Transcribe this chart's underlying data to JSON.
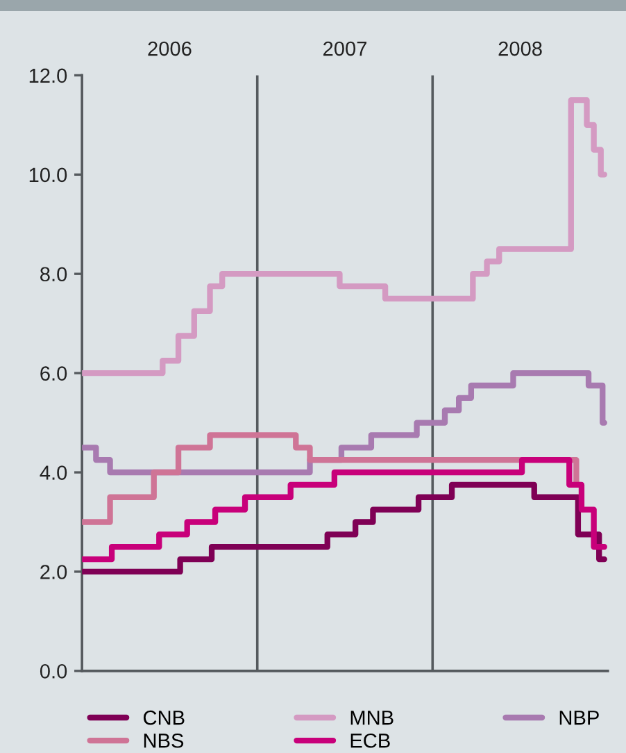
{
  "chart_data": {
    "type": "step",
    "xlim": [
      2006,
      2009
    ],
    "xticks": [
      {
        "value": 2006.5,
        "label": "2006"
      },
      {
        "value": 2007.5,
        "label": "2007"
      },
      {
        "value": 2008.5,
        "label": "2008"
      }
    ],
    "ylim": [
      0,
      12
    ],
    "yticks": [
      {
        "value": 0,
        "label": "0.0"
      },
      {
        "value": 2,
        "label": "2.0"
      },
      {
        "value": 4,
        "label": "4.0"
      },
      {
        "value": 6,
        "label": "6.0"
      },
      {
        "value": 8,
        "label": "8.0"
      },
      {
        "value": 10,
        "label": "10.0"
      },
      {
        "value": 12,
        "label": "12.0"
      }
    ],
    "ref_lines": [
      {
        "axis": "x",
        "value": 2007,
        "color": "#555a5e"
      },
      {
        "axis": "x",
        "value": 2008,
        "color": "#555a5e"
      }
    ],
    "grid": false,
    "legend": "bottom",
    "line_style": "solid",
    "marker": "none",
    "series": [
      {
        "name": "CNB",
        "color": "#7f0055",
        "x": [
          2006.0,
          2006.56,
          2006.74,
          2007.4,
          2007.56,
          2007.66,
          2007.92,
          2008.11,
          2008.58,
          2008.83,
          2008.95,
          2008.98
        ],
        "values": [
          2.0,
          2.25,
          2.5,
          2.75,
          3.0,
          3.25,
          3.5,
          3.75,
          3.5,
          2.75,
          2.25,
          2.25
        ]
      },
      {
        "name": "MNB",
        "color": "#d49ac2",
        "x": [
          2006.0,
          2006.46,
          2006.55,
          2006.64,
          2006.73,
          2006.8,
          2007.47,
          2007.73,
          2008.23,
          2008.31,
          2008.38,
          2008.79,
          2008.88,
          2008.92,
          2008.96,
          2008.98
        ],
        "values": [
          6.0,
          6.25,
          6.75,
          7.25,
          7.75,
          8.0,
          7.75,
          7.5,
          8.0,
          8.25,
          8.5,
          11.5,
          11.0,
          10.5,
          10.0,
          10.0
        ]
      },
      {
        "name": "NBP",
        "color": "#a87ab0",
        "x": [
          2006.0,
          2006.08,
          2006.16,
          2007.3,
          2007.48,
          2007.65,
          2007.91,
          2008.07,
          2008.15,
          2008.22,
          2008.46,
          2008.89,
          2008.97,
          2008.98
        ],
        "values": [
          4.5,
          4.25,
          4.0,
          4.25,
          4.5,
          4.75,
          5.0,
          5.25,
          5.5,
          5.75,
          6.0,
          5.75,
          5.0,
          5.0
        ]
      },
      {
        "name": "NBS",
        "color": "#cf7496",
        "x": [
          2006.0,
          2006.16,
          2006.41,
          2006.55,
          2006.73,
          2007.22,
          2007.3,
          2008.82,
          2008.84
        ],
        "values": [
          3.0,
          3.5,
          4.0,
          4.5,
          4.75,
          4.5,
          4.25,
          3.75,
          3.75
        ]
      },
      {
        "name": "ECB",
        "color": "#c8007a",
        "x": [
          2006.0,
          2006.17,
          2006.44,
          2006.6,
          2006.76,
          2006.93,
          2007.19,
          2007.44,
          2008.51,
          2008.78,
          2008.85,
          2008.92,
          2008.98
        ],
        "values": [
          2.25,
          2.5,
          2.75,
          3.0,
          3.25,
          3.5,
          3.75,
          4.0,
          4.25,
          3.75,
          3.25,
          2.5,
          2.5
        ]
      }
    ]
  }
}
